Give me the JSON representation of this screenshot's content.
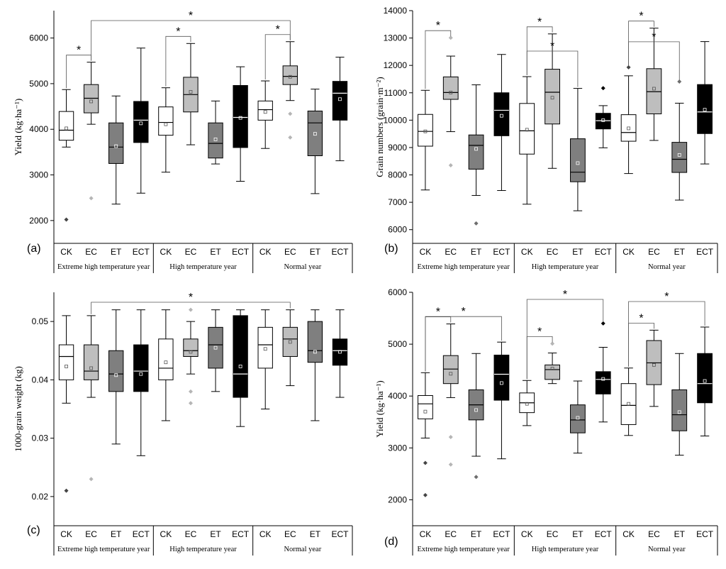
{
  "figure": {
    "colors": {
      "CK": "#ffffff",
      "EC": "#bebebe",
      "ET": "#7f7f7f",
      "ECT": "#000000",
      "outline": "#000000"
    }
  },
  "chart_data": [
    {
      "type": "box",
      "panel_label": "(a)",
      "ylabel": "Yield (kg·ha⁻¹)",
      "ylim": [
        1500,
        6600
      ],
      "yticks": [
        2000,
        3000,
        4000,
        5000,
        6000
      ],
      "categories": [
        "CK",
        "EC",
        "ET",
        "ECT"
      ],
      "groups": [
        {
          "name": "Extreme high temperature year",
          "boxes": [
            {
              "cat": "CK",
              "min": 3610,
              "q1": 3760,
              "median": 3980,
              "q3": 4390,
              "max": 4870,
              "mean": 4020,
              "outliers": [
                2020
              ]
            },
            {
              "cat": "EC",
              "min": 4110,
              "q1": 4360,
              "median": 4680,
              "q3": 4980,
              "max": 5470,
              "mean": 4610,
              "outliers": [
                2490
              ]
            },
            {
              "cat": "ET",
              "min": 2360,
              "q1": 3250,
              "median": 3610,
              "q3": 4140,
              "max": 4730,
              "mean": 3630,
              "outliers": []
            },
            {
              "cat": "ECT",
              "min": 2600,
              "q1": 3710,
              "median": 4200,
              "q3": 4610,
              "max": 5780,
              "mean": 4130,
              "outliers": []
            }
          ]
        },
        {
          "name": "High temperature year",
          "boxes": [
            {
              "cat": "CK",
              "min": 3060,
              "q1": 3870,
              "median": 4150,
              "q3": 4490,
              "max": 4910,
              "mean": 4110,
              "outliers": []
            },
            {
              "cat": "EC",
              "min": 3660,
              "q1": 4380,
              "median": 4760,
              "q3": 5140,
              "max": 5880,
              "mean": 4820,
              "outliers": []
            },
            {
              "cat": "ET",
              "min": 3240,
              "q1": 3370,
              "median": 3690,
              "q3": 4140,
              "max": 4620,
              "mean": 3780,
              "outliers": []
            },
            {
              "cat": "ECT",
              "min": 2860,
              "q1": 3600,
              "median": 4260,
              "q3": 4960,
              "max": 5370,
              "mean": 4250,
              "outliers": []
            }
          ]
        },
        {
          "name": "Normal year",
          "boxes": [
            {
              "cat": "CK",
              "min": 3580,
              "q1": 4200,
              "median": 4430,
              "q3": 4620,
              "max": 5060,
              "mean": 4380,
              "outliers": []
            },
            {
              "cat": "EC",
              "min": 4630,
              "q1": 4980,
              "median": 5160,
              "q3": 5390,
              "max": 5920,
              "mean": 5150,
              "outliers": [
                4340,
                3820
              ]
            },
            {
              "cat": "ET",
              "min": 2590,
              "q1": 3420,
              "median": 4140,
              "q3": 4400,
              "max": 4880,
              "mean": 3900,
              "outliers": []
            },
            {
              "cat": "ECT",
              "min": 3310,
              "q1": 4200,
              "median": 4790,
              "q3": 5050,
              "max": 5580,
              "mean": 4660,
              "outliers": []
            }
          ]
        }
      ],
      "significance": [
        {
          "from": [
            0,
            0
          ],
          "to": [
            0,
            1
          ],
          "label": "*"
        },
        {
          "from": [
            0,
            1
          ],
          "to": [
            2,
            1
          ],
          "label": "*"
        },
        {
          "from": [
            1,
            0
          ],
          "to": [
            1,
            1
          ],
          "label": "*"
        },
        {
          "from": [
            2,
            0
          ],
          "to": [
            2,
            1
          ],
          "label": "*"
        }
      ]
    },
    {
      "type": "box",
      "panel_label": "(b)",
      "ylabel": "Grain numbers (grain·m⁻²)",
      "ylim": [
        5500,
        14000
      ],
      "yticks": [
        6000,
        7000,
        8000,
        9000,
        10000,
        11000,
        12000,
        13000,
        14000
      ],
      "categories": [
        "CK",
        "EC",
        "ET",
        "ECT"
      ],
      "groups": [
        {
          "name": "Extreme high temperature year",
          "boxes": [
            {
              "cat": "CK",
              "min": 7450,
              "q1": 9050,
              "median": 9590,
              "q3": 10210,
              "max": 11090,
              "mean": 9590,
              "outliers": []
            },
            {
              "cat": "EC",
              "min": 9580,
              "q1": 10760,
              "median": 11010,
              "q3": 11580,
              "max": 12340,
              "mean": 11010,
              "outliers": [
                13010,
                8350
              ]
            },
            {
              "cat": "ET",
              "min": 7250,
              "q1": 8210,
              "median": 9080,
              "q3": 9460,
              "max": 11290,
              "mean": 8950,
              "outliers": [
                6230
              ]
            },
            {
              "cat": "ECT",
              "min": 7430,
              "q1": 9430,
              "median": 10360,
              "q3": 11000,
              "max": 12400,
              "mean": 10160,
              "outliers": []
            }
          ]
        },
        {
          "name": "High temperature year",
          "boxes": [
            {
              "cat": "CK",
              "min": 6930,
              "q1": 8760,
              "median": 9610,
              "q3": 10610,
              "max": 11590,
              "mean": 9650,
              "outliers": []
            },
            {
              "cat": "EC",
              "min": 8240,
              "q1": 9860,
              "median": 11020,
              "q3": 11860,
              "max": 13150,
              "mean": 10820,
              "outliers": []
            },
            {
              "cat": "ET",
              "min": 6690,
              "q1": 7750,
              "median": 8100,
              "q3": 9320,
              "max": 11160,
              "mean": 8430,
              "outliers": []
            },
            {
              "cat": "ECT",
              "min": 8990,
              "q1": 9680,
              "median": 9980,
              "q3": 10250,
              "max": 10530,
              "mean": 10000,
              "outliers": [
                11170
              ]
            }
          ]
        },
        {
          "name": "Normal year",
          "boxes": [
            {
              "cat": "CK",
              "min": 8050,
              "q1": 9230,
              "median": 9550,
              "q3": 10200,
              "max": 11620,
              "mean": 9700,
              "outliers": [
                11930
              ]
            },
            {
              "cat": "EC",
              "min": 9260,
              "q1": 10230,
              "median": 11040,
              "q3": 11880,
              "max": 13360,
              "mean": 11150,
              "outliers": []
            },
            {
              "cat": "ET",
              "min": 7080,
              "q1": 8090,
              "median": 8570,
              "q3": 9190,
              "max": 10620,
              "mean": 8730,
              "outliers": [
                11410
              ]
            },
            {
              "cat": "ECT",
              "min": 8400,
              "q1": 9510,
              "median": 10300,
              "q3": 11300,
              "max": 12870,
              "mean": 10380,
              "outliers": []
            }
          ]
        }
      ],
      "significance": [
        {
          "from": [
            0,
            0
          ],
          "to": [
            0,
            1
          ],
          "label": "*"
        },
        {
          "from": [
            1,
            0
          ],
          "to": [
            1,
            1
          ],
          "label": "*"
        },
        {
          "from": [
            1,
            0
          ],
          "to": [
            1,
            2
          ],
          "label": "*"
        },
        {
          "from": [
            2,
            0
          ],
          "to": [
            2,
            1
          ],
          "label": "*"
        },
        {
          "from": [
            2,
            0
          ],
          "to": [
            2,
            2
          ],
          "label": "*"
        }
      ]
    },
    {
      "type": "box",
      "panel_label": "(c)",
      "ylabel": "1000-grain weight (kg)",
      "ylim": [
        0.015,
        0.055
      ],
      "yticks": [
        0.02,
        0.03,
        0.04,
        0.05
      ],
      "categories": [
        "CK",
        "EC",
        "ET",
        "ECT"
      ],
      "groups": [
        {
          "name": "Extreme high temperature year",
          "boxes": [
            {
              "cat": "CK",
              "min": 0.036,
              "q1": 0.04,
              "median": 0.044,
              "q3": 0.046,
              "max": 0.051,
              "mean": 0.0423,
              "outliers": [
                0.021
              ]
            },
            {
              "cat": "EC",
              "min": 0.037,
              "q1": 0.04,
              "median": 0.0415,
              "q3": 0.046,
              "max": 0.051,
              "mean": 0.042,
              "outliers": [
                0.023
              ]
            },
            {
              "cat": "ET",
              "min": 0.029,
              "q1": 0.038,
              "median": 0.041,
              "q3": 0.045,
              "max": 0.052,
              "mean": 0.0408,
              "outliers": []
            },
            {
              "cat": "ECT",
              "min": 0.027,
              "q1": 0.038,
              "median": 0.0415,
              "q3": 0.046,
              "max": 0.052,
              "mean": 0.041,
              "outliers": []
            }
          ]
        },
        {
          "name": "High temperature year",
          "boxes": [
            {
              "cat": "CK",
              "min": 0.033,
              "q1": 0.04,
              "median": 0.042,
              "q3": 0.047,
              "max": 0.052,
              "mean": 0.043,
              "outliers": []
            },
            {
              "cat": "EC",
              "min": 0.041,
              "q1": 0.044,
              "median": 0.045,
              "q3": 0.047,
              "max": 0.05,
              "mean": 0.0448,
              "outliers": [
                0.052,
                0.038,
                0.036
              ]
            },
            {
              "cat": "ET",
              "min": 0.038,
              "q1": 0.042,
              "median": 0.046,
              "q3": 0.049,
              "max": 0.052,
              "mean": 0.0455,
              "outliers": []
            },
            {
              "cat": "ECT",
              "min": 0.032,
              "q1": 0.037,
              "median": 0.041,
              "q3": 0.051,
              "max": 0.052,
              "mean": 0.0423,
              "outliers": []
            }
          ]
        },
        {
          "name": "Normal year",
          "boxes": [
            {
              "cat": "CK",
              "min": 0.035,
              "q1": 0.042,
              "median": 0.046,
              "q3": 0.049,
              "max": 0.052,
              "mean": 0.0453,
              "outliers": []
            },
            {
              "cat": "EC",
              "min": 0.039,
              "q1": 0.044,
              "median": 0.047,
              "q3": 0.049,
              "max": 0.052,
              "mean": 0.0465,
              "outliers": []
            },
            {
              "cat": "ET",
              "min": 0.033,
              "q1": 0.043,
              "median": 0.045,
              "q3": 0.05,
              "max": 0.052,
              "mean": 0.0448,
              "outliers": []
            },
            {
              "cat": "ECT",
              "min": 0.037,
              "q1": 0.0425,
              "median": 0.045,
              "q3": 0.047,
              "max": 0.052,
              "mean": 0.0448,
              "outliers": []
            }
          ]
        }
      ],
      "significance": [
        {
          "from": [
            0,
            1
          ],
          "to": [
            2,
            1
          ],
          "label": "*"
        }
      ]
    },
    {
      "type": "box",
      "panel_label": "(d)",
      "ylabel": "Yield (kg·ha⁻¹)",
      "ylim": [
        1500,
        6000
      ],
      "yticks": [
        2000,
        3000,
        4000,
        5000,
        6000
      ],
      "categories": [
        "CK",
        "EC",
        "ET",
        "ECT"
      ],
      "groups": [
        {
          "name": "Extreme high temperature year",
          "boxes": [
            {
              "cat": "CK",
              "min": 3190,
              "q1": 3560,
              "median": 3850,
              "q3": 4010,
              "max": 4450,
              "mean": 3700,
              "outliers": [
                2710,
                2090
              ]
            },
            {
              "cat": "EC",
              "min": 3970,
              "q1": 4240,
              "median": 4520,
              "q3": 4780,
              "max": 5390,
              "mean": 4430,
              "outliers": [
                3210,
                2680
              ]
            },
            {
              "cat": "ET",
              "min": 2840,
              "q1": 3540,
              "median": 3830,
              "q3": 4120,
              "max": 4820,
              "mean": 3730,
              "outliers": [
                2440
              ]
            },
            {
              "cat": "ECT",
              "min": 2790,
              "q1": 3920,
              "median": 4420,
              "q3": 4790,
              "max": 5040,
              "mean": 4250,
              "outliers": []
            }
          ]
        },
        {
          "name": "High temperature year",
          "boxes": [
            {
              "cat": "CK",
              "min": 3430,
              "q1": 3680,
              "median": 3870,
              "q3": 4060,
              "max": 4300,
              "mean": 3850,
              "outliers": []
            },
            {
              "cat": "EC",
              "min": 4240,
              "q1": 4320,
              "median": 4510,
              "q3": 4600,
              "max": 4830,
              "mean": 4530,
              "outliers": [
                5010
              ]
            },
            {
              "cat": "ET",
              "min": 2900,
              "q1": 3290,
              "median": 3540,
              "q3": 3830,
              "max": 4290,
              "mean": 3580,
              "outliers": []
            },
            {
              "cat": "ECT",
              "min": 3500,
              "q1": 4040,
              "median": 4320,
              "q3": 4470,
              "max": 4940,
              "mean": 4330,
              "outliers": [
                5400
              ]
            }
          ]
        },
        {
          "name": "Normal year",
          "boxes": [
            {
              "cat": "CK",
              "min": 3240,
              "q1": 3450,
              "median": 3820,
              "q3": 4240,
              "max": 4540,
              "mean": 3850,
              "outliers": []
            },
            {
              "cat": "EC",
              "min": 3800,
              "q1": 4220,
              "median": 4640,
              "q3": 5070,
              "max": 5270,
              "mean": 4600,
              "outliers": []
            },
            {
              "cat": "ET",
              "min": 2860,
              "q1": 3330,
              "median": 3640,
              "q3": 4120,
              "max": 4820,
              "mean": 3690,
              "outliers": []
            },
            {
              "cat": "ECT",
              "min": 3230,
              "q1": 3870,
              "median": 4240,
              "q3": 4820,
              "max": 5330,
              "mean": 4290,
              "outliers": []
            }
          ]
        }
      ],
      "significance": [
        {
          "from": [
            0,
            0
          ],
          "to": [
            0,
            1
          ],
          "label": "*"
        },
        {
          "from": [
            0,
            0
          ],
          "to": [
            0,
            3
          ],
          "label": "*"
        },
        {
          "from": [
            1,
            0
          ],
          "to": [
            1,
            1
          ],
          "label": "*"
        },
        {
          "from": [
            1,
            0
          ],
          "to": [
            1,
            3
          ],
          "label": "*"
        },
        {
          "from": [
            2,
            0
          ],
          "to": [
            2,
            1
          ],
          "label": "*"
        },
        {
          "from": [
            2,
            0
          ],
          "to": [
            2,
            3
          ],
          "label": "*"
        }
      ]
    }
  ]
}
